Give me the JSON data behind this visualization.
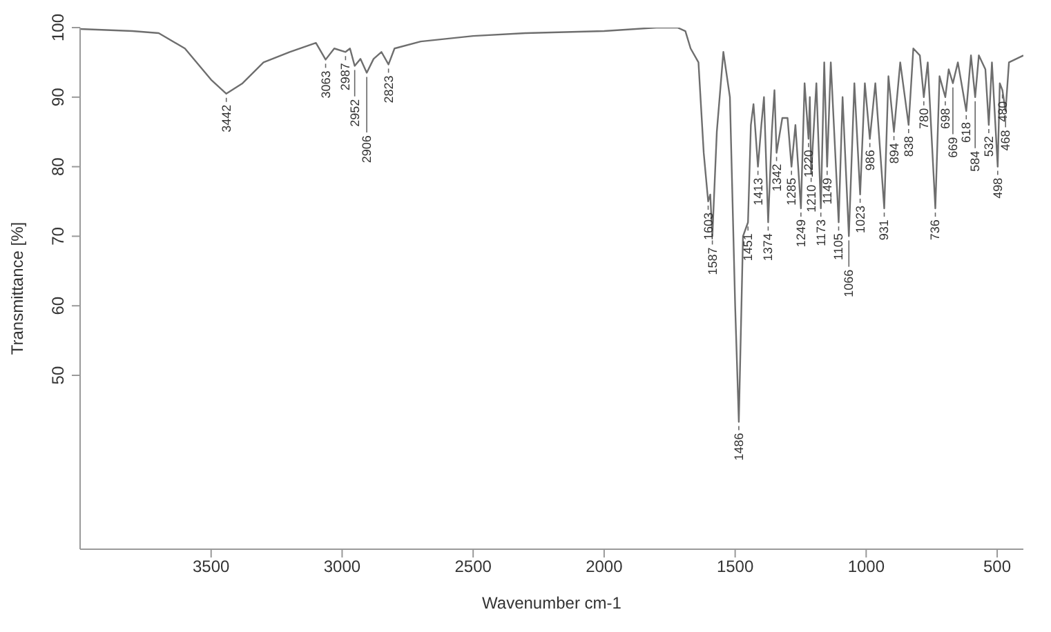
{
  "chart_data": {
    "type": "line",
    "xlabel": "Wavenumber cm-1",
    "ylabel": "Transmittance [%]",
    "color": "#6e6e6e",
    "xlim": [
      4000,
      400
    ],
    "xticks": [
      3500,
      3000,
      2500,
      2000,
      1500,
      1000,
      500
    ],
    "ylim": [
      25,
      100
    ],
    "yticks": [
      50,
      60,
      70,
      80,
      90,
      100
    ],
    "x": [
      4000,
      3800,
      3700,
      3600,
      3500,
      3442,
      3380,
      3300,
      3200,
      3100,
      3063,
      3030,
      2987,
      2970,
      2952,
      2930,
      2906,
      2880,
      2850,
      2823,
      2800,
      2700,
      2500,
      2300,
      2000,
      1800,
      1720,
      1690,
      1670,
      1640,
      1620,
      1603,
      1595,
      1587,
      1570,
      1545,
      1520,
      1500,
      1486,
      1470,
      1451,
      1440,
      1430,
      1413,
      1400,
      1390,
      1374,
      1360,
      1350,
      1342,
      1320,
      1300,
      1285,
      1270,
      1249,
      1235,
      1220,
      1215,
      1210,
      1190,
      1173,
      1160,
      1149,
      1135,
      1105,
      1090,
      1066,
      1045,
      1023,
      1005,
      986,
      965,
      931,
      915,
      894,
      870,
      838,
      820,
      795,
      780,
      765,
      736,
      720,
      698,
      685,
      669,
      650,
      618,
      600,
      584,
      570,
      545,
      532,
      520,
      498,
      490,
      480,
      468,
      455,
      400
    ],
    "values": [
      99.8,
      99.5,
      99.2,
      97,
      92.5,
      90.5,
      92,
      95,
      96.5,
      97.8,
      95.4,
      97,
      96.5,
      97,
      94.5,
      95.5,
      93.5,
      95.5,
      96.5,
      94.7,
      97,
      98,
      98.8,
      99.2,
      99.5,
      100,
      100,
      99.5,
      97,
      95,
      82,
      75,
      76,
      70,
      85,
      96.5,
      90,
      60,
      43.3,
      70,
      72,
      86,
      89,
      80,
      86,
      90,
      72,
      85,
      91,
      82,
      87,
      87,
      80,
      86,
      74,
      92,
      84,
      90,
      79,
      92,
      74,
      95,
      80,
      95,
      72,
      90,
      70,
      92,
      76,
      92,
      84,
      92,
      74,
      93,
      85,
      95,
      86,
      97,
      96,
      90,
      95,
      74,
      93,
      90,
      94,
      92,
      95,
      88,
      96,
      90,
      96,
      94,
      86,
      95,
      80,
      92,
      91,
      88,
      95,
      96
    ],
    "annotations": [
      {
        "text": "3442",
        "x": 3442,
        "y": 90.5
      },
      {
        "text": "3063",
        "x": 3063,
        "y": 95.4
      },
      {
        "text": "2987",
        "x": 2987,
        "y": 96.5
      },
      {
        "text": "2952",
        "x": 2952,
        "y": 94.5
      },
      {
        "text": "2906",
        "x": 2906,
        "y": 93.5
      },
      {
        "text": "2823",
        "x": 2823,
        "y": 94.7
      },
      {
        "text": "1603",
        "x": 1603,
        "y": 75
      },
      {
        "text": "1587",
        "x": 1587,
        "y": 70
      },
      {
        "text": "1486",
        "x": 1486,
        "y": 43.3
      },
      {
        "text": "1451",
        "x": 1451,
        "y": 72
      },
      {
        "text": "1413",
        "x": 1413,
        "y": 80
      },
      {
        "text": "1374",
        "x": 1374,
        "y": 72
      },
      {
        "text": "1342",
        "x": 1342,
        "y": 82
      },
      {
        "text": "1285",
        "x": 1285,
        "y": 80
      },
      {
        "text": "1249",
        "x": 1249,
        "y": 74
      },
      {
        "text": "1220",
        "x": 1220,
        "y": 84
      },
      {
        "text": "1210",
        "x": 1210,
        "y": 79
      },
      {
        "text": "1173",
        "x": 1173,
        "y": 74
      },
      {
        "text": "1149",
        "x": 1149,
        "y": 80
      },
      {
        "text": "1105",
        "x": 1105,
        "y": 72
      },
      {
        "text": "1066",
        "x": 1066,
        "y": 70
      },
      {
        "text": "1023",
        "x": 1023,
        "y": 76
      },
      {
        "text": "986",
        "x": 986,
        "y": 84
      },
      {
        "text": "931",
        "x": 931,
        "y": 74
      },
      {
        "text": "894",
        "x": 894,
        "y": 85
      },
      {
        "text": "838",
        "x": 838,
        "y": 86
      },
      {
        "text": "780",
        "x": 780,
        "y": 90
      },
      {
        "text": "736",
        "x": 736,
        "y": 74
      },
      {
        "text": "698",
        "x": 698,
        "y": 90
      },
      {
        "text": "669",
        "x": 669,
        "y": 92
      },
      {
        "text": "618",
        "x": 618,
        "y": 88
      },
      {
        "text": "584",
        "x": 584,
        "y": 90
      },
      {
        "text": "532",
        "x": 532,
        "y": 86
      },
      {
        "text": "498",
        "x": 498,
        "y": 80
      },
      {
        "text": "480",
        "x": 480,
        "y": 91
      },
      {
        "text": "468",
        "x": 468,
        "y": 88
      }
    ]
  }
}
